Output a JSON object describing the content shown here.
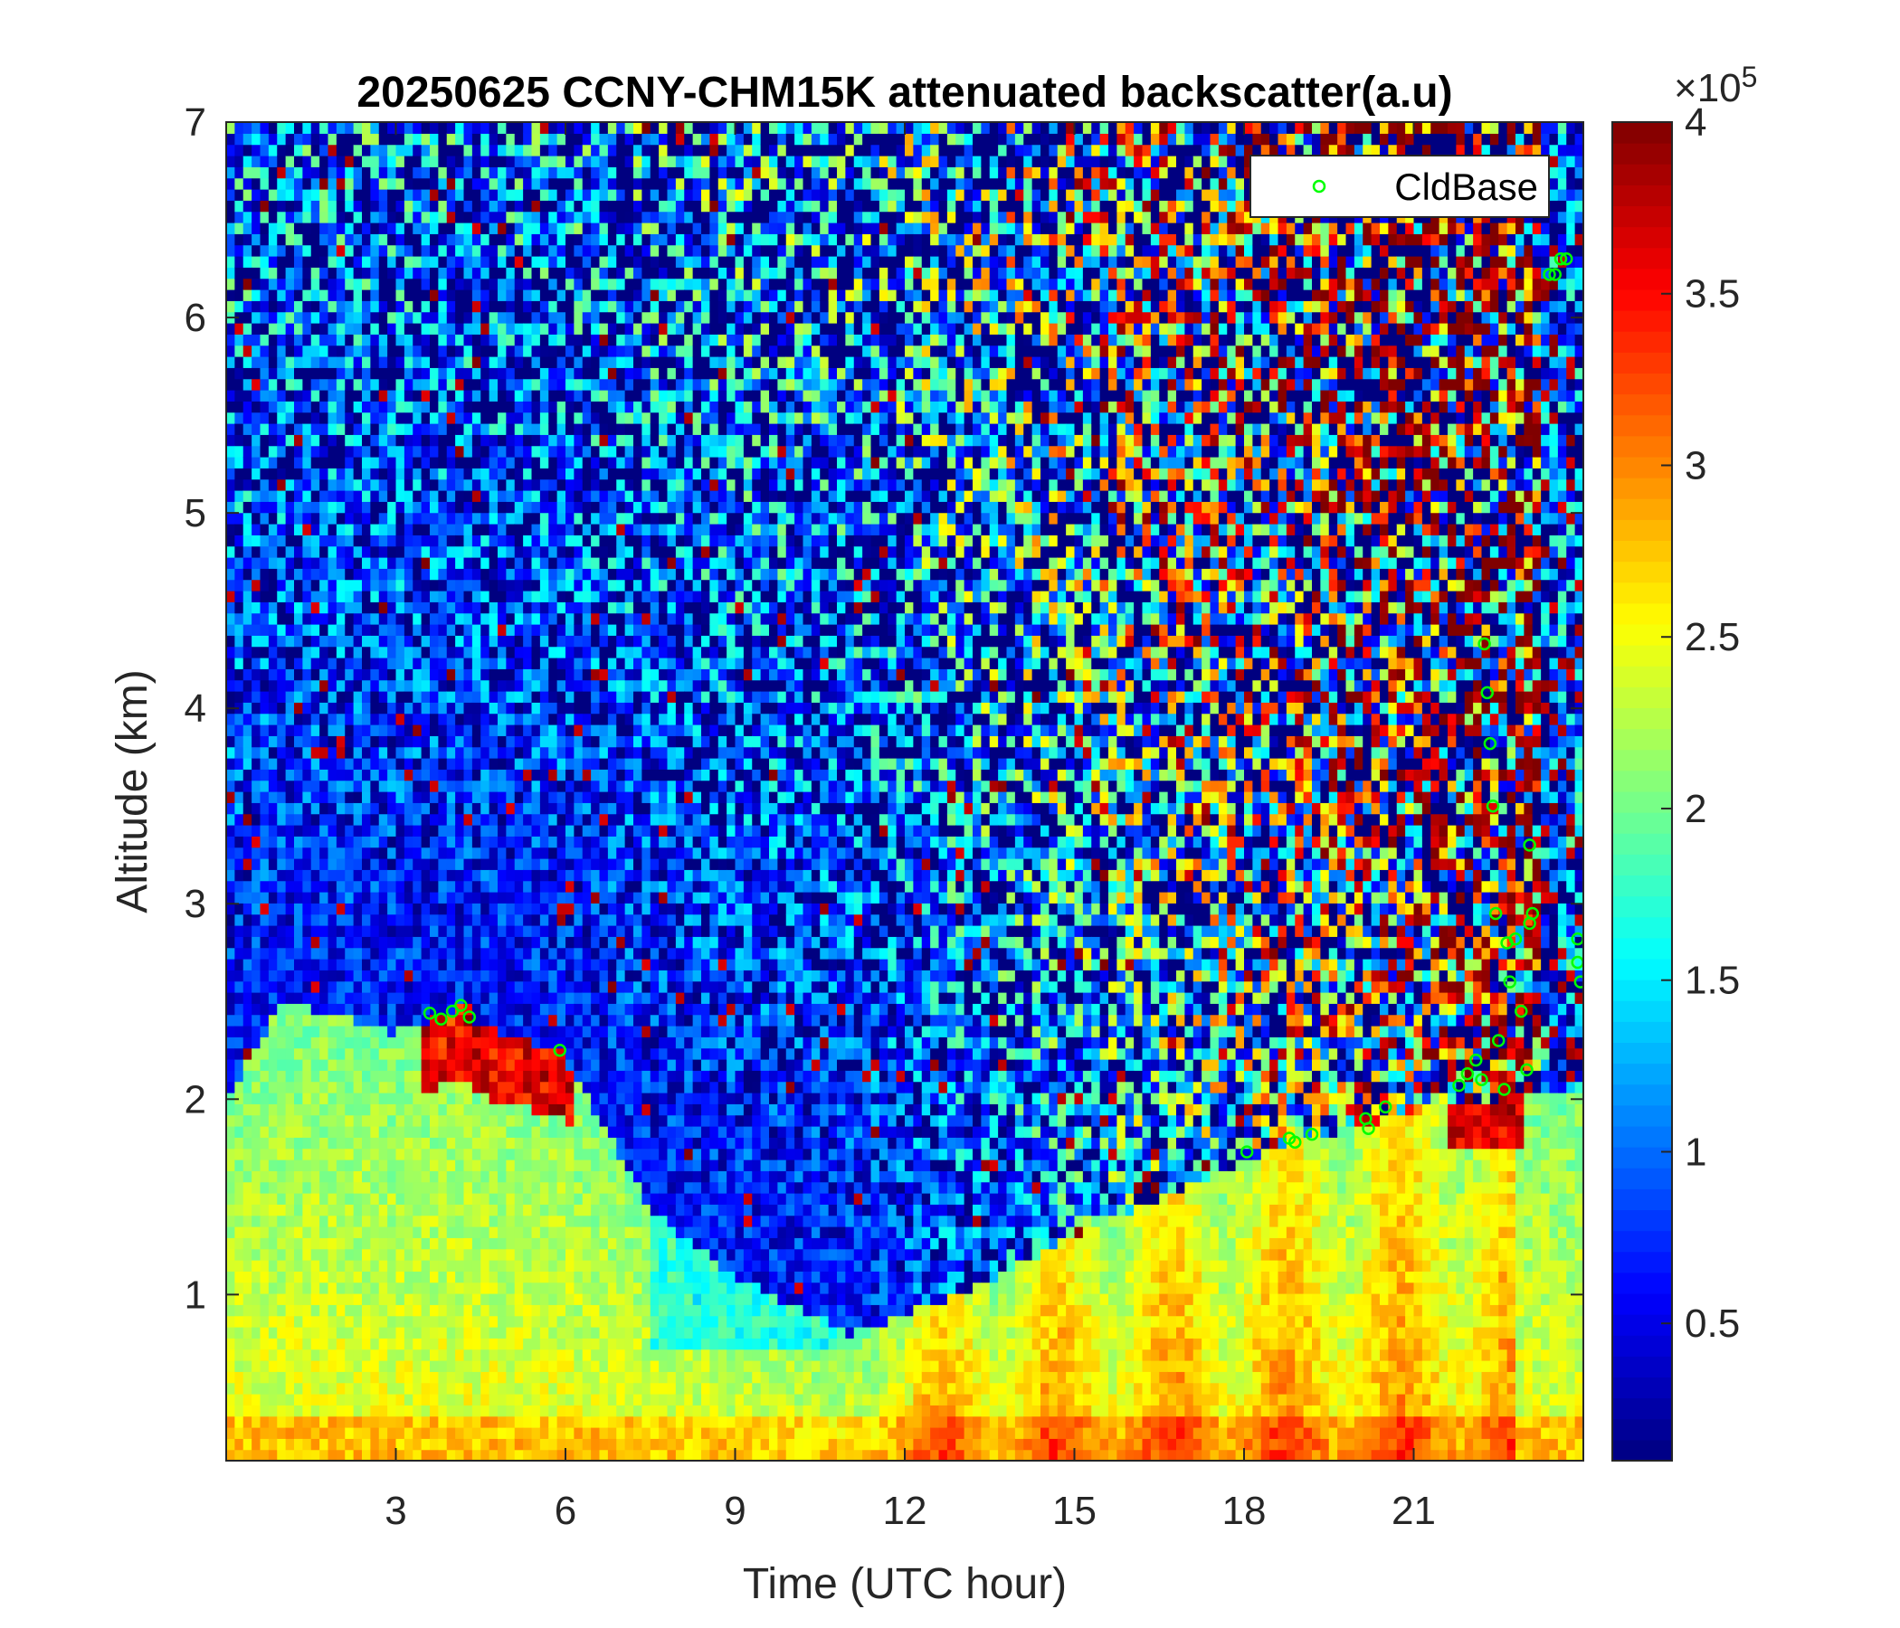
{
  "chart_data": {
    "type": "heatmap",
    "title": "20250625 CCNY-CHM15K attenuated backscatter(a.u)",
    "xlabel": "Time (UTC hour)",
    "ylabel": "Altitude (km)",
    "xlim": [
      0,
      24
    ],
    "ylim": [
      0.15,
      7
    ],
    "x_ticks": [
      "3",
      "6",
      "9",
      "12",
      "15",
      "18",
      "21"
    ],
    "y_ticks": [
      "1",
      "2",
      "3",
      "4",
      "5",
      "6",
      "7"
    ],
    "colorbar": {
      "colormap": "jet",
      "range": [
        0.1,
        4
      ],
      "exponent_label": "×10",
      "exponent": "5",
      "ticks": [
        "0.5",
        "1",
        "1.5",
        "2",
        "2.5",
        "3",
        "3.5",
        "4"
      ]
    },
    "legend": {
      "entries": [
        "CldBase"
      ],
      "position": "top-right",
      "marker_color": "#00ff00"
    },
    "cloud_base": [
      {
        "t": 3.6,
        "h": 2.44
      },
      {
        "t": 3.8,
        "h": 2.41
      },
      {
        "t": 4.0,
        "h": 2.45
      },
      {
        "t": 4.15,
        "h": 2.48
      },
      {
        "t": 4.3,
        "h": 2.42
      },
      {
        "t": 5.9,
        "h": 2.25
      },
      {
        "t": 18.05,
        "h": 1.73
      },
      {
        "t": 18.8,
        "h": 1.8
      },
      {
        "t": 18.9,
        "h": 1.78
      },
      {
        "t": 19.2,
        "h": 1.82
      },
      {
        "t": 20.15,
        "h": 1.9
      },
      {
        "t": 20.2,
        "h": 1.85
      },
      {
        "t": 20.5,
        "h": 1.96
      },
      {
        "t": 21.8,
        "h": 2.07
      },
      {
        "t": 21.95,
        "h": 2.13
      },
      {
        "t": 22.1,
        "h": 2.2
      },
      {
        "t": 22.2,
        "h": 2.1
      },
      {
        "t": 22.25,
        "h": 4.33
      },
      {
        "t": 22.3,
        "h": 4.08
      },
      {
        "t": 22.35,
        "h": 3.82
      },
      {
        "t": 22.4,
        "h": 3.5
      },
      {
        "t": 22.45,
        "h": 2.95
      },
      {
        "t": 22.5,
        "h": 2.3
      },
      {
        "t": 22.6,
        "h": 2.05
      },
      {
        "t": 22.65,
        "h": 2.8
      },
      {
        "t": 22.7,
        "h": 2.6
      },
      {
        "t": 22.8,
        "h": 2.82
      },
      {
        "t": 22.9,
        "h": 2.45
      },
      {
        "t": 23.0,
        "h": 2.15
      },
      {
        "t": 23.05,
        "h": 2.9
      },
      {
        "t": 23.1,
        "h": 2.95
      },
      {
        "t": 23.05,
        "h": 3.3
      },
      {
        "t": 23.4,
        "h": 6.22
      },
      {
        "t": 23.5,
        "h": 6.22
      },
      {
        "t": 23.6,
        "h": 6.3
      },
      {
        "t": 23.7,
        "h": 6.3
      },
      {
        "t": 23.9,
        "h": 2.82
      },
      {
        "t": 23.9,
        "h": 2.7
      },
      {
        "t": 23.95,
        "h": 2.6
      }
    ]
  }
}
